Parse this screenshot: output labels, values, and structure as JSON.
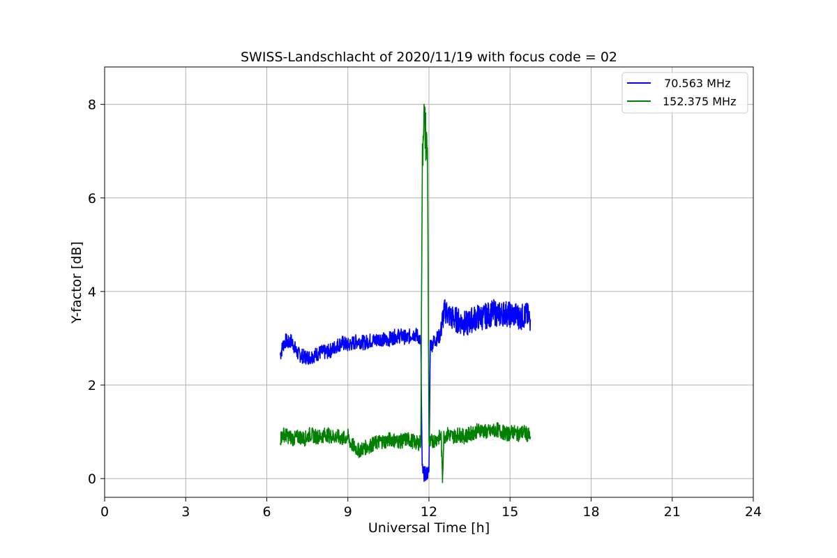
{
  "chart_data": {
    "type": "line",
    "title": "SWISS-Landschlacht of 2020/11/19 with focus code = 02",
    "xlabel": "Universal Time [h]",
    "ylabel": "Y-factor [dB]",
    "xlim": [
      0,
      24
    ],
    "ylim": [
      -0.4,
      8.8
    ],
    "xticks": [
      0,
      3,
      6,
      9,
      12,
      15,
      18,
      21,
      24
    ],
    "yticks": [
      0,
      2,
      4,
      6,
      8
    ],
    "grid": true,
    "legend_position": "top-right",
    "series": [
      {
        "name": " 70.563 MHz",
        "color": "#0000ff",
        "x": [
          6.5,
          6.6,
          6.7,
          6.8,
          6.9,
          7.0,
          7.1,
          7.2,
          7.4,
          7.6,
          7.8,
          8.0,
          8.2,
          8.4,
          8.6,
          8.8,
          9.0,
          9.2,
          9.4,
          9.6,
          9.8,
          10.0,
          10.2,
          10.4,
          10.6,
          10.8,
          11.0,
          11.2,
          11.4,
          11.6,
          11.7,
          11.75,
          11.8,
          11.9,
          12.0,
          12.05,
          12.1,
          12.2,
          12.3,
          12.4,
          12.5,
          12.6,
          12.8,
          13.0,
          13.2,
          13.4,
          13.6,
          13.8,
          14.0,
          14.2,
          14.4,
          14.6,
          14.8,
          15.0,
          15.2,
          15.4,
          15.6,
          15.75
        ],
        "y": [
          2.65,
          2.85,
          2.95,
          2.9,
          2.95,
          2.85,
          2.7,
          2.65,
          2.6,
          2.6,
          2.65,
          2.7,
          2.7,
          2.75,
          2.85,
          2.9,
          2.85,
          2.9,
          2.95,
          2.9,
          2.95,
          2.95,
          3.0,
          2.95,
          3.0,
          3.05,
          3.05,
          3.0,
          3.1,
          3.05,
          2.9,
          0.2,
          0.1,
          0.1,
          0.15,
          2.9,
          2.85,
          2.95,
          3.0,
          3.05,
          3.4,
          3.6,
          3.45,
          3.4,
          3.35,
          3.3,
          3.4,
          3.45,
          3.45,
          3.5,
          3.55,
          3.5,
          3.55,
          3.5,
          3.5,
          3.45,
          3.5,
          3.4
        ]
      },
      {
        "name": "152.375 MHz",
        "color": "#008000",
        "x": [
          6.5,
          6.6,
          6.8,
          7.0,
          7.2,
          7.4,
          7.6,
          7.8,
          8.0,
          8.2,
          8.4,
          8.6,
          8.8,
          9.0,
          9.1,
          9.2,
          9.4,
          9.6,
          9.8,
          10.0,
          10.2,
          10.4,
          10.6,
          10.8,
          11.0,
          11.2,
          11.4,
          11.6,
          11.7,
          11.75,
          11.8,
          11.85,
          11.9,
          11.95,
          12.0,
          12.05,
          12.1,
          12.3,
          12.45,
          12.5,
          12.55,
          12.7,
          12.9,
          13.1,
          13.3,
          13.5,
          13.7,
          13.9,
          14.1,
          14.3,
          14.5,
          14.7,
          14.9,
          15.1,
          15.3,
          15.5,
          15.75
        ],
        "y": [
          0.85,
          0.95,
          0.9,
          0.85,
          0.9,
          0.85,
          0.95,
          0.9,
          0.9,
          0.95,
          0.9,
          0.9,
          0.85,
          0.9,
          0.75,
          0.7,
          0.6,
          0.65,
          0.7,
          0.75,
          0.8,
          0.8,
          0.85,
          0.8,
          0.8,
          0.85,
          0.8,
          0.75,
          0.8,
          6.5,
          7.8,
          7.5,
          7.2,
          6.8,
          0.8,
          0.75,
          0.8,
          0.85,
          0.9,
          0.0,
          0.9,
          0.95,
          0.9,
          0.95,
          0.9,
          0.95,
          1.0,
          1.05,
          1.0,
          1.0,
          1.05,
          1.0,
          0.95,
          1.0,
          0.95,
          1.0,
          0.9
        ]
      }
    ]
  }
}
